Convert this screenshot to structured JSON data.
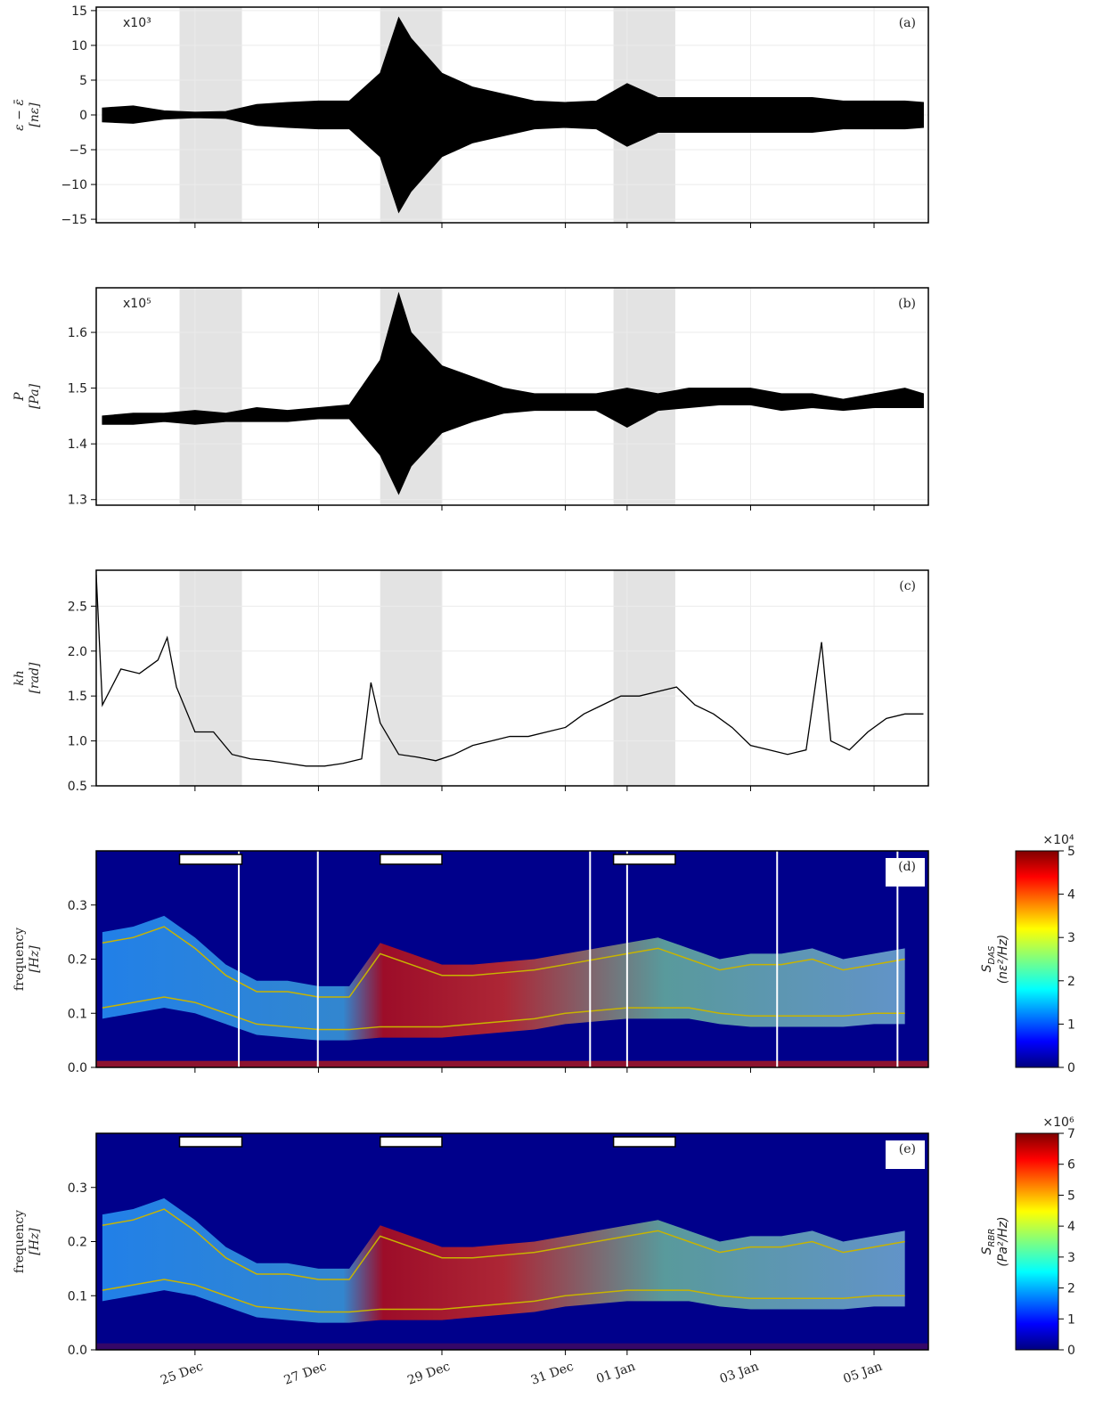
{
  "xaxis": {
    "xlim": [
      -1.6,
      11.88
    ],
    "xticks": [
      {
        "value": 0,
        "label": "25 Dec"
      },
      {
        "value": 2,
        "label": "27 Dec"
      },
      {
        "value": 4,
        "label": "29 Dec"
      },
      {
        "value": 6,
        "label": "31 Dec"
      },
      {
        "value": 7,
        "label": "01 Jan"
      },
      {
        "value": 9,
        "label": "03 Jan"
      },
      {
        "value": 11,
        "label": "05 Jan"
      }
    ]
  },
  "shaded": [
    [
      -0.25,
      0.76
    ],
    [
      3.0,
      4.0
    ],
    [
      6.78,
      7.78
    ]
  ],
  "chart_data": [
    {
      "type": "area",
      "label": "(a)",
      "multiplier": "x10³",
      "ylabel": [
        "ε − ε̄",
        "[nε]"
      ],
      "color": "#000000",
      "grid": true,
      "ylim": [
        -15.5,
        15.5
      ],
      "yticks": [
        {
          "value": -15,
          "label": "−15"
        },
        {
          "value": -10,
          "label": "−10"
        },
        {
          "value": -5,
          "label": "−5"
        },
        0,
        5,
        10,
        15
      ],
      "x": [
        -1.5,
        -1,
        -0.5,
        0,
        0.5,
        1,
        1.5,
        2,
        2.5,
        3,
        3.3,
        3.5,
        4,
        4.5,
        5,
        5.5,
        6,
        6.5,
        7,
        7.5,
        8,
        8.5,
        9,
        9.5,
        10,
        10.5,
        11,
        11.5,
        11.8
      ],
      "upper": [
        1,
        1.3,
        0.6,
        0.4,
        0.5,
        1.5,
        1.8,
        2,
        2,
        6,
        14,
        11,
        6,
        4,
        3,
        2,
        1.8,
        2,
        4.5,
        2.5,
        2.5,
        2.5,
        2.5,
        2.5,
        2.5,
        2,
        2,
        2,
        1.8
      ],
      "lower": [
        -1,
        -1.2,
        -0.6,
        -0.4,
        -0.5,
        -1.5,
        -1.8,
        -2,
        -2,
        -6,
        -14,
        -11,
        -6,
        -4,
        -3,
        -2,
        -1.8,
        -2,
        -4.5,
        -2.5,
        -2.5,
        -2.5,
        -2.5,
        -2.5,
        -2.5,
        -2,
        -2,
        -2,
        -1.8
      ]
    },
    {
      "type": "area",
      "label": "(b)",
      "multiplier": "x10⁵",
      "ylabel": [
        "P",
        "[Pa]"
      ],
      "color": "#000000",
      "grid": true,
      "ylim": [
        1.29,
        1.68
      ],
      "yticks": [
        1.3,
        1.4,
        1.5,
        1.6
      ],
      "x": [
        -1.5,
        -1,
        -0.5,
        0,
        0.5,
        1,
        1.5,
        2,
        2.5,
        3,
        3.3,
        3.5,
        4,
        4.5,
        5,
        5.5,
        6,
        6.5,
        7,
        7.5,
        8,
        8.5,
        9,
        9.5,
        10,
        10.5,
        11,
        11.5,
        11.8
      ],
      "upper": [
        1.45,
        1.455,
        1.455,
        1.46,
        1.455,
        1.465,
        1.46,
        1.465,
        1.47,
        1.55,
        1.67,
        1.6,
        1.54,
        1.52,
        1.5,
        1.49,
        1.49,
        1.49,
        1.5,
        1.49,
        1.5,
        1.5,
        1.5,
        1.49,
        1.49,
        1.48,
        1.49,
        1.5,
        1.49
      ],
      "lower": [
        1.435,
        1.435,
        1.44,
        1.435,
        1.44,
        1.44,
        1.44,
        1.445,
        1.445,
        1.38,
        1.31,
        1.36,
        1.42,
        1.44,
        1.455,
        1.46,
        1.46,
        1.46,
        1.43,
        1.46,
        1.465,
        1.47,
        1.47,
        1.46,
        1.465,
        1.46,
        1.465,
        1.465,
        1.465
      ]
    },
    {
      "type": "line",
      "label": "(c)",
      "ylabel": [
        "kh",
        "[rad]"
      ],
      "color": "#000000",
      "grid": true,
      "ylim": [
        0.5,
        2.9
      ],
      "yticks": [
        {
          "value": 0.5,
          "label": "0.5"
        },
        {
          "value": 1,
          "label": "1.0"
        },
        {
          "value": 1.5,
          "label": "1.5"
        },
        {
          "value": 2,
          "label": "2.0"
        },
        {
          "value": 2.5,
          "label": "2.5"
        }
      ],
      "x": [
        -1.6,
        -1.5,
        -1.2,
        -0.9,
        -0.6,
        -0.45,
        -0.3,
        0,
        0.3,
        0.6,
        0.9,
        1.2,
        1.5,
        1.8,
        2.1,
        2.4,
        2.7,
        2.85,
        3,
        3.3,
        3.6,
        3.9,
        4.2,
        4.5,
        4.8,
        5.1,
        5.4,
        5.7,
        6,
        6.3,
        6.6,
        6.9,
        7.2,
        7.5,
        7.8,
        8.1,
        8.4,
        8.7,
        9,
        9.3,
        9.6,
        9.9,
        10.15,
        10.3,
        10.6,
        10.9,
        11.2,
        11.5,
        11.8
      ],
      "values": [
        2.85,
        1.4,
        1.8,
        1.75,
        1.9,
        2.15,
        1.6,
        1.1,
        1.1,
        0.85,
        0.8,
        0.78,
        0.75,
        0.72,
        0.72,
        0.75,
        0.8,
        1.65,
        1.2,
        0.85,
        0.82,
        0.78,
        0.85,
        0.95,
        1.0,
        1.05,
        1.05,
        1.1,
        1.15,
        1.3,
        1.4,
        1.5,
        1.5,
        1.55,
        1.6,
        1.4,
        1.3,
        1.15,
        0.95,
        0.9,
        0.85,
        0.9,
        2.1,
        1.0,
        0.9,
        1.1,
        1.25,
        1.3,
        1.3
      ]
    },
    {
      "type": "heatmap",
      "label": "(d)",
      "ylabel": [
        "frequency",
        "[Hz]"
      ],
      "ylim": [
        0,
        0.4
      ],
      "yticks": [
        {
          "value": 0,
          "label": "0.0"
        },
        0.1,
        0.2,
        0.3
      ],
      "x": [
        -1.5,
        -1,
        -0.5,
        0,
        0.5,
        1,
        1.5,
        2,
        2.5,
        3,
        3.5,
        4,
        4.5,
        5,
        5.5,
        6,
        6.5,
        7,
        7.5,
        8,
        8.5,
        9,
        9.5,
        10,
        10.5,
        11,
        11.5
      ],
      "series": [
        {
          "color": "#c8b400",
          "values": [
            0.23,
            0.24,
            0.26,
            0.22,
            0.17,
            0.14,
            0.14,
            0.13,
            0.13,
            0.21,
            0.19,
            0.17,
            0.17,
            0.175,
            0.18,
            0.19,
            0.2,
            0.21,
            0.22,
            0.2,
            0.18,
            0.19,
            0.19,
            0.2,
            0.18,
            0.19,
            0.2
          ]
        },
        {
          "color": "#c8b400",
          "values": [
            0.11,
            0.12,
            0.13,
            0.12,
            0.1,
            0.08,
            0.075,
            0.07,
            0.07,
            0.075,
            0.075,
            0.075,
            0.08,
            0.085,
            0.09,
            0.1,
            0.105,
            0.11,
            0.11,
            0.11,
            0.1,
            0.095,
            0.095,
            0.095,
            0.095,
            0.1,
            0.1
          ]
        }
      ],
      "gaps": [
        0.71,
        1.99,
        6.4,
        7.0,
        9.43,
        11.38
      ],
      "colorbar": {
        "multiplier": "×10⁴",
        "symbol": "S",
        "subscript": "DAS",
        "unit": "(nε²/Hz)",
        "lim": [
          0,
          5
        ],
        "ticks": [
          0,
          1,
          2,
          3,
          4,
          5
        ]
      }
    },
    {
      "type": "heatmap",
      "label": "(e)",
      "ylabel": [
        "frequency",
        "[Hz]"
      ],
      "ylim": [
        0,
        0.4
      ],
      "yticks": [
        {
          "value": 0,
          "label": "0.0"
        },
        0.1,
        0.2,
        0.3
      ],
      "x": [
        -1.5,
        -1,
        -0.5,
        0,
        0.5,
        1,
        1.5,
        2,
        2.5,
        3,
        3.5,
        4,
        4.5,
        5,
        5.5,
        6,
        6.5,
        7,
        7.5,
        8,
        8.5,
        9,
        9.5,
        10,
        10.5,
        11,
        11.5
      ],
      "series": [
        {
          "color": "#c8b400",
          "values": [
            0.23,
            0.24,
            0.26,
            0.22,
            0.17,
            0.14,
            0.14,
            0.13,
            0.13,
            0.21,
            0.19,
            0.17,
            0.17,
            0.175,
            0.18,
            0.19,
            0.2,
            0.21,
            0.22,
            0.2,
            0.18,
            0.19,
            0.19,
            0.2,
            0.18,
            0.19,
            0.2
          ]
        },
        {
          "color": "#c8b400",
          "values": [
            0.11,
            0.12,
            0.13,
            0.12,
            0.1,
            0.08,
            0.075,
            0.07,
            0.07,
            0.075,
            0.075,
            0.075,
            0.08,
            0.085,
            0.09,
            0.1,
            0.105,
            0.11,
            0.11,
            0.11,
            0.1,
            0.095,
            0.095,
            0.095,
            0.095,
            0.1,
            0.1
          ]
        }
      ],
      "colorbar": {
        "multiplier": "×10⁶",
        "symbol": "S",
        "subscript": "RBR",
        "unit": "(Pa²/Hz)",
        "lim": [
          0,
          7
        ],
        "ticks": [
          0,
          1,
          2,
          3,
          4,
          5,
          6,
          7
        ]
      }
    }
  ]
}
